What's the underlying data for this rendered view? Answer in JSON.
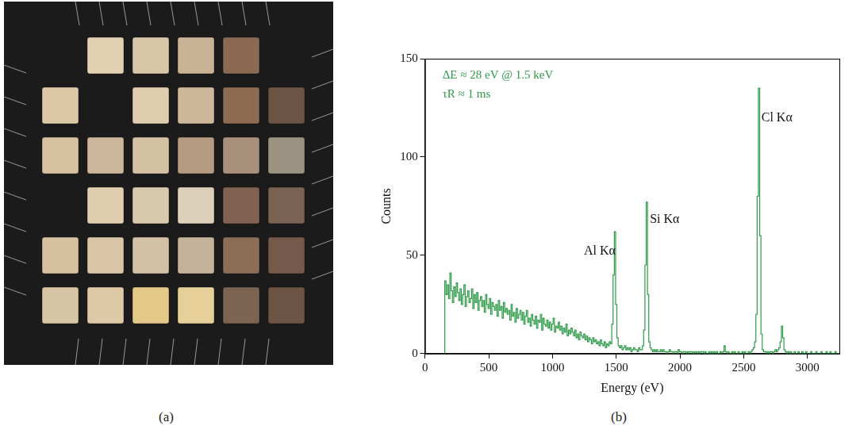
{
  "photo_panel": {
    "label": "(a)"
  },
  "chart_data": {
    "type": "line",
    "panel_label": "(b)",
    "x_label": "Energy (eV)",
    "y_label": "Counts",
    "annotations": [
      {
        "text": "ΔE ≈ 28 eV @ 1.5 keV"
      },
      {
        "text": "τR ≈ 1 ms"
      },
      {
        "text": "Al Kα",
        "x": 1370,
        "y": 52
      },
      {
        "text": "Si Kα",
        "x": 1880,
        "y": 68
      },
      {
        "text": "Cl Kα",
        "x": 2760,
        "y": 120
      }
    ],
    "series": [
      {
        "color": "#2e9b48",
        "line_style": "steps",
        "x": [
          150,
          160,
          170,
          180,
          190,
          200,
          210,
          220,
          230,
          240,
          250,
          260,
          270,
          280,
          290,
          300,
          310,
          320,
          330,
          340,
          350,
          360,
          370,
          380,
          390,
          400,
          410,
          420,
          430,
          440,
          450,
          460,
          470,
          480,
          490,
          500,
          510,
          520,
          530,
          540,
          550,
          560,
          570,
          580,
          590,
          600,
          610,
          620,
          630,
          640,
          650,
          660,
          670,
          680,
          690,
          700,
          710,
          720,
          730,
          740,
          750,
          760,
          770,
          780,
          790,
          800,
          810,
          820,
          830,
          840,
          850,
          860,
          870,
          880,
          890,
          900,
          910,
          920,
          930,
          940,
          950,
          960,
          970,
          980,
          990,
          1000,
          1010,
          1020,
          1030,
          1040,
          1050,
          1060,
          1070,
          1080,
          1090,
          1100,
          1110,
          1120,
          1130,
          1140,
          1150,
          1160,
          1170,
          1180,
          1190,
          1200,
          1210,
          1220,
          1230,
          1240,
          1250,
          1260,
          1270,
          1280,
          1290,
          1300,
          1310,
          1320,
          1330,
          1340,
          1350,
          1360,
          1370,
          1380,
          1390,
          1400,
          1410,
          1420,
          1430,
          1440,
          1450,
          1460,
          1470,
          1480,
          1490,
          1500,
          1510,
          1520,
          1530,
          1540,
          1550,
          1560,
          1570,
          1580,
          1590,
          1600,
          1610,
          1620,
          1630,
          1640,
          1650,
          1660,
          1670,
          1680,
          1690,
          1700,
          1710,
          1720,
          1730,
          1740,
          1750,
          1760,
          1770,
          1780,
          1790,
          1800,
          1810,
          1820,
          1830,
          1840,
          1850,
          1860,
          1870,
          1880,
          1890,
          1900,
          1910,
          1920,
          1930,
          1940,
          1950,
          1960,
          1970,
          1980,
          1990,
          2000,
          2010,
          2020,
          2030,
          2040,
          2050,
          2060,
          2070,
          2080,
          2090,
          2100,
          2110,
          2120,
          2130,
          2140,
          2150,
          2160,
          2170,
          2180,
          2190,
          2200,
          2210,
          2220,
          2230,
          2240,
          2250,
          2260,
          2270,
          2280,
          2290,
          2300,
          2310,
          2320,
          2330,
          2340,
          2350,
          2360,
          2370,
          2380,
          2390,
          2400,
          2410,
          2420,
          2430,
          2440,
          2450,
          2460,
          2470,
          2480,
          2490,
          2500,
          2510,
          2520,
          2530,
          2540,
          2550,
          2560,
          2570,
          2580,
          2590,
          2600,
          2610,
          2620,
          2630,
          2640,
          2650,
          2660,
          2670,
          2680,
          2690,
          2700,
          2710,
          2720,
          2730,
          2740,
          2750,
          2760,
          2770,
          2780,
          2790,
          2800,
          2810,
          2820,
          2830,
          2840,
          2850,
          2860,
          2870,
          2880,
          2890,
          2900,
          2910,
          2920,
          2930,
          2940,
          2950,
          2960,
          2970,
          2980,
          2990,
          3000,
          3010,
          3020,
          3030,
          3040,
          3050,
          3060,
          3070,
          3080,
          3090,
          3100,
          3110,
          3120,
          3130,
          3140,
          3150,
          3160,
          3170,
          3180,
          3190,
          3200,
          3210,
          3220,
          3230,
          3240,
          3250
        ],
        "values": [
          0,
          37,
          30,
          35,
          28,
          41,
          32,
          26,
          34,
          29,
          36,
          31,
          27,
          33,
          25,
          30,
          35,
          24,
          29,
          32,
          26,
          28,
          33,
          23,
          30,
          26,
          31,
          22,
          27,
          29,
          24,
          27,
          21,
          30,
          25,
          23,
          28,
          20,
          26,
          24,
          22,
          25,
          19,
          27,
          22,
          24,
          18,
          26,
          21,
          23,
          20,
          22,
          17,
          25,
          19,
          21,
          16,
          23,
          18,
          20,
          22,
          17,
          21,
          15,
          19,
          22,
          16,
          18,
          14,
          20,
          17,
          15,
          19,
          13,
          17,
          16,
          20,
          12,
          18,
          15,
          14,
          17,
          13,
          16,
          12,
          15,
          18,
          11,
          14,
          13,
          16,
          12,
          14,
          10,
          13,
          11,
          15,
          9,
          12,
          10,
          13,
          11,
          9,
          12,
          8,
          10,
          7,
          11,
          9,
          8,
          10,
          7,
          9,
          6,
          8,
          7,
          5,
          8,
          6,
          7,
          5,
          6,
          4,
          7,
          5,
          4,
          6,
          3,
          5,
          4,
          6,
          5,
          15,
          40,
          62,
          25,
          8,
          4,
          3,
          4,
          2,
          3,
          4,
          2,
          3,
          2,
          3,
          1,
          2,
          3,
          2,
          2,
          1,
          3,
          2,
          2,
          4,
          12,
          45,
          77,
          30,
          6,
          3,
          2,
          1,
          2,
          1,
          2,
          1,
          1,
          2,
          1,
          2,
          1,
          1,
          0,
          1,
          2,
          1,
          1,
          0,
          1,
          1,
          0,
          2,
          1,
          1,
          0,
          1,
          1,
          0,
          1,
          0,
          1,
          1,
          0,
          1,
          0,
          1,
          0,
          1,
          0,
          1,
          1,
          0,
          1,
          0,
          0,
          1,
          0,
          1,
          0,
          1,
          0,
          1,
          0,
          0,
          1,
          0,
          1,
          4,
          1,
          0,
          1,
          0,
          0,
          1,
          0,
          1,
          0,
          0,
          1,
          0,
          0,
          1,
          0,
          1,
          0,
          0,
          1,
          0,
          1,
          2,
          3,
          6,
          20,
          80,
          135,
          60,
          10,
          2,
          1,
          1,
          0,
          1,
          0,
          1,
          1,
          0,
          1,
          2,
          1,
          2,
          3,
          6,
          14,
          8,
          2,
          1,
          0,
          1,
          0,
          1,
          0,
          0,
          1,
          0,
          0,
          1,
          0,
          0,
          1,
          0,
          0,
          1,
          0,
          0,
          0,
          1,
          0,
          0,
          0,
          1,
          0,
          0,
          0,
          1,
          0,
          0,
          0,
          1,
          0,
          0,
          1,
          0,
          0,
          0,
          1,
          0,
          0,
          0
        ]
      }
    ],
    "xlim": [
      0,
      3250
    ],
    "ylim": [
      0,
      150
    ],
    "xticks": [
      0,
      500,
      1000,
      1500,
      2000,
      2500,
      3000
    ],
    "yticks": [
      0,
      50,
      100,
      150
    ],
    "grid": false
  }
}
